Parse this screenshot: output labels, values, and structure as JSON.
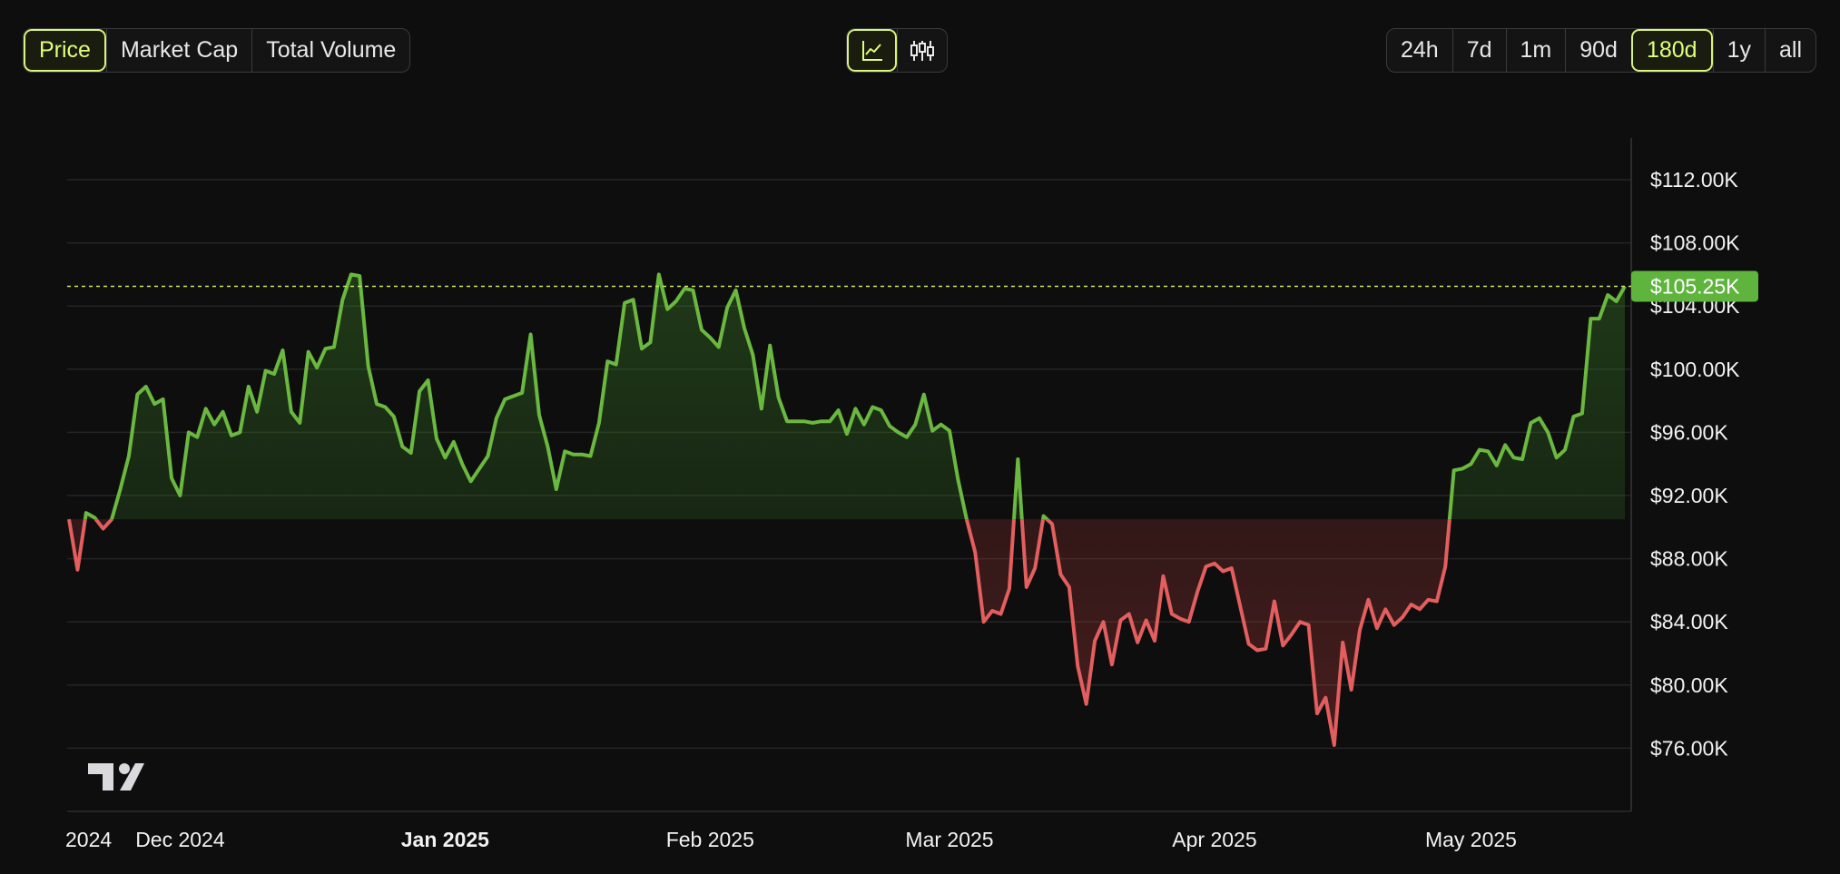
{
  "metric_tabs": [
    {
      "label": "Price",
      "active": true
    },
    {
      "label": "Market Cap",
      "active": false
    },
    {
      "label": "Total Volume",
      "active": false
    }
  ],
  "chart_type_toggle": [
    {
      "icon": "line-chart-icon",
      "active": true
    },
    {
      "icon": "candlestick-icon",
      "active": false
    }
  ],
  "range_tabs": [
    {
      "label": "24h",
      "active": false
    },
    {
      "label": "7d",
      "active": false
    },
    {
      "label": "1m",
      "active": false
    },
    {
      "label": "90d",
      "active": false
    },
    {
      "label": "180d",
      "active": true
    },
    {
      "label": "1y",
      "active": false
    },
    {
      "label": "all",
      "active": false
    }
  ],
  "colors": {
    "up": "#6bb840",
    "down": "#e35e5e",
    "accent": "#d8f47a",
    "badge": "#5fb43e",
    "grid": "#252525"
  },
  "chart_data": {
    "type": "line",
    "baseline": 90500,
    "ylim": [
      72000,
      114000
    ],
    "y_ticks": [
      {
        "value": 112000,
        "label": "$112.00K"
      },
      {
        "value": 108000,
        "label": "$108.00K"
      },
      {
        "value": 104000,
        "label": "$104.00K"
      },
      {
        "value": 100000,
        "label": "$100.00K"
      },
      {
        "value": 96000,
        "label": "$96.00K"
      },
      {
        "value": 92000,
        "label": "$92.00K"
      },
      {
        "value": 88000,
        "label": "$88.00K"
      },
      {
        "value": 84000,
        "label": "$84.00K"
      },
      {
        "value": 80000,
        "label": "$80.00K"
      },
      {
        "value": 76000,
        "label": "$76.00K"
      }
    ],
    "x_ticks": [
      {
        "day": 0,
        "label": "2024",
        "bold": false
      },
      {
        "day": 13,
        "label": "Dec 2024",
        "bold": false
      },
      {
        "day": 44,
        "label": "Jan 2025",
        "bold": true
      },
      {
        "day": 75,
        "label": "Feb 2025",
        "bold": false
      },
      {
        "day": 103,
        "label": "Mar 2025",
        "bold": false
      },
      {
        "day": 134,
        "label": "Apr 2025",
        "bold": false
      },
      {
        "day": 164,
        "label": "May 2025",
        "bold": false
      }
    ],
    "current_price": {
      "value": 105250,
      "label": "$105.25K"
    },
    "series": [
      {
        "values": [
          90500,
          87300,
          90900,
          90600,
          89900,
          90500,
          92400,
          94500,
          98400,
          98900,
          97800,
          98100,
          93100,
          92000,
          96000,
          95700,
          97500,
          96500,
          97300,
          95800,
          96000,
          98900,
          97300,
          99900,
          99700,
          101200,
          97300,
          96600,
          101100,
          100100,
          101300,
          101400,
          104400,
          106000,
          105900,
          100200,
          97800,
          97600,
          97000,
          95100,
          94700,
          98600,
          99300,
          95600,
          94400,
          95400,
          94000,
          92900,
          93700,
          94500,
          96900,
          98100,
          98300,
          98500,
          102200,
          97100,
          95100,
          92400,
          94800,
          94600,
          94600,
          94500,
          96600,
          100500,
          100300,
          104200,
          104400,
          101300,
          101700,
          106000,
          103800,
          104300,
          105100,
          105000,
          102500,
          102000,
          101400,
          103900,
          105000,
          102600,
          100900,
          97500,
          101500,
          98200,
          96700,
          96700,
          96700,
          96600,
          96700,
          96700,
          97400,
          95900,
          97500,
          96500,
          97600,
          97400,
          96400,
          96000,
          95700,
          96500,
          98400,
          96100,
          96500,
          96100,
          93000,
          90500,
          88400,
          84000,
          84700,
          84500,
          86100,
          94300,
          86200,
          87400,
          90700,
          90200,
          87000,
          86200,
          81200,
          78800,
          82800,
          84000,
          81300,
          84100,
          84500,
          82700,
          84100,
          82800,
          86900,
          84500,
          84200,
          84000,
          85900,
          87500,
          87700,
          87200,
          87400,
          85000,
          82600,
          82200,
          82300,
          85300,
          82500,
          83200,
          84000,
          83800,
          78200,
          79200,
          76200,
          82700,
          79700,
          83500,
          85400,
          83600,
          84800,
          83800,
          84300,
          85100,
          84800,
          85400,
          85300,
          87500,
          93600,
          93700,
          94000,
          94900,
          94800,
          93900,
          95200,
          94400,
          94300,
          96600,
          96900,
          96000,
          94400,
          94900,
          97000,
          97200,
          103200,
          103200,
          104700,
          104300,
          105250
        ]
      }
    ]
  }
}
